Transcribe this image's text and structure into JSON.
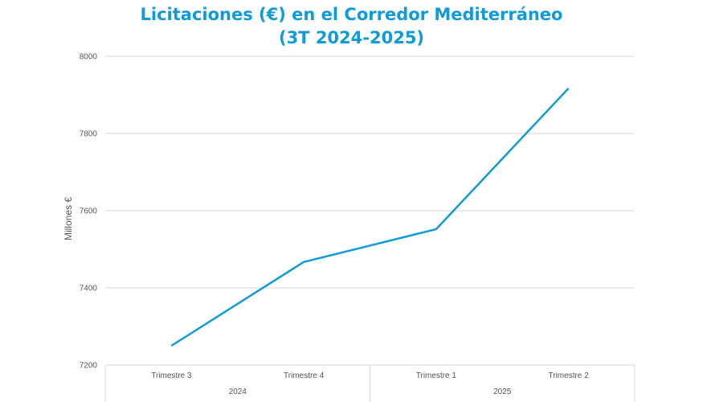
{
  "chart_data": {
    "type": "line",
    "title_line1": "Licitaciones (€) en el Corredor Mediterráneo",
    "title_line2": "(3T 2024-2025)",
    "ylabel": "Millones €",
    "xlabel": "",
    "ylim": [
      7200,
      8000
    ],
    "yticks": [
      "7200",
      "7400",
      "7600",
      "7800",
      "8000"
    ],
    "categories": [
      "Trimestre 3",
      "Trimestre 4",
      "Trimestre 1",
      "Trimestre 2"
    ],
    "groups": [
      {
        "label": "2024",
        "span": 2
      },
      {
        "label": "2025",
        "span": 2
      }
    ],
    "series": [
      {
        "values": [
          7250,
          7467,
          7552,
          7917
        ],
        "color": "#0e9bd8"
      }
    ],
    "grid": true,
    "legend": "none"
  }
}
